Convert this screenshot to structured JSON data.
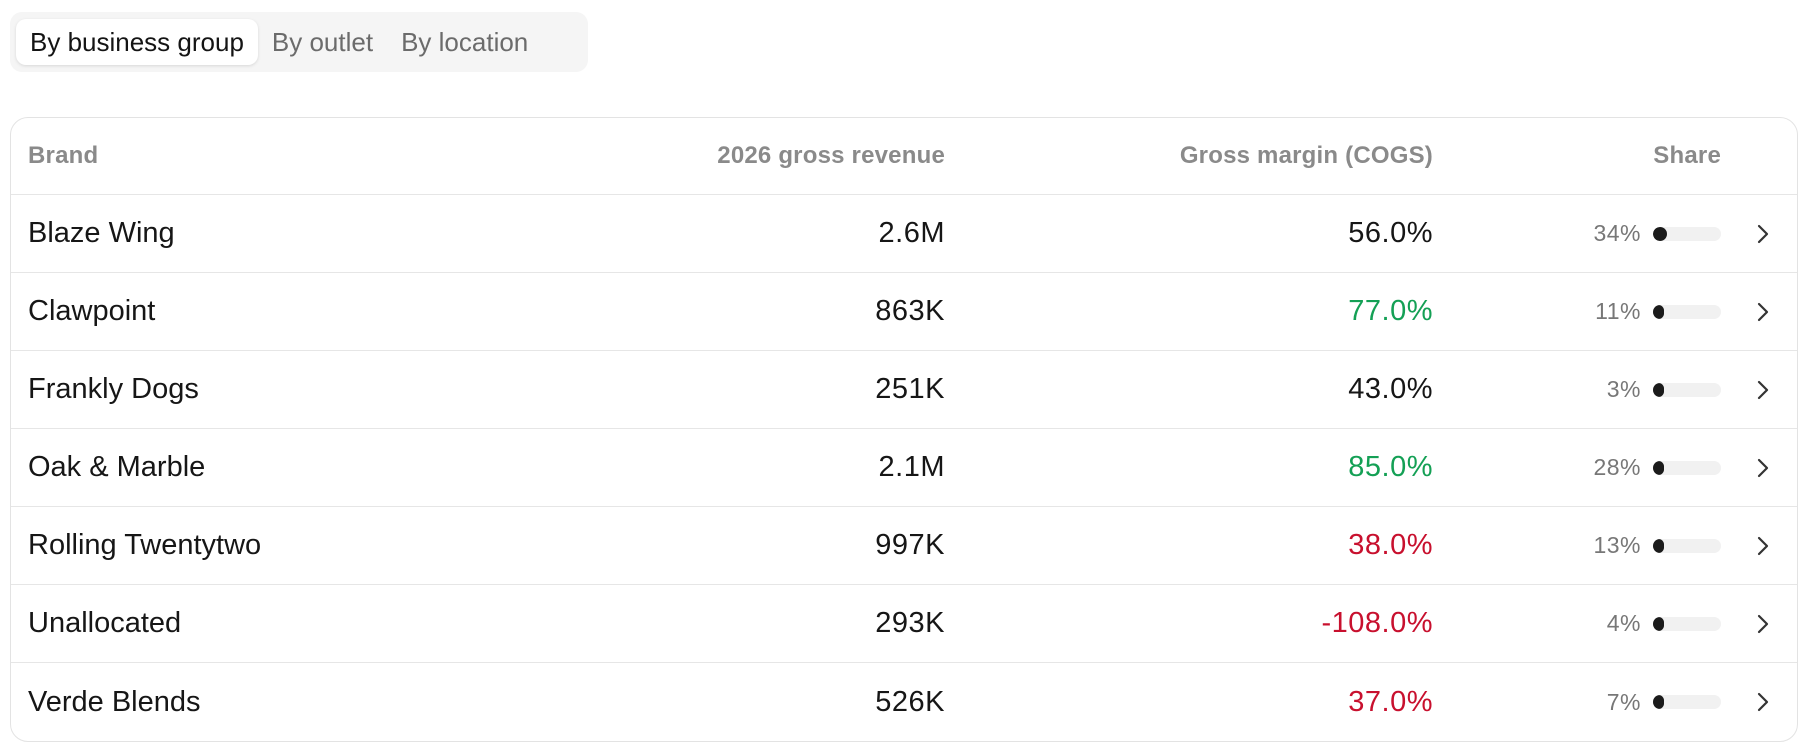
{
  "tabs": [
    {
      "label": "By business group",
      "active": true
    },
    {
      "label": "By outlet",
      "active": false
    },
    {
      "label": "By location",
      "active": false
    }
  ],
  "table": {
    "headers": {
      "brand": "Brand",
      "revenue": "2026 gross revenue",
      "margin": "Gross margin (COGS)",
      "share": "Share"
    },
    "rows": [
      {
        "brand": "Blaze Wing",
        "revenue": "2.6M",
        "margin": "56.0%",
        "margin_status": "neutral",
        "share": "34%",
        "share_value": 0.34
      },
      {
        "brand": "Clawpoint",
        "revenue": "863K",
        "margin": "77.0%",
        "margin_status": "positive",
        "share": "11%",
        "share_value": 0.11
      },
      {
        "brand": "Frankly Dogs",
        "revenue": "251K",
        "margin": "43.0%",
        "margin_status": "neutral",
        "share": "3%",
        "share_value": 0.03
      },
      {
        "brand": "Oak & Marble",
        "revenue": "2.1M",
        "margin": "85.0%",
        "margin_status": "positive",
        "share": "28%",
        "share_value": 0.28
      },
      {
        "brand": "Rolling Twentytwo",
        "revenue": "997K",
        "margin": "38.0%",
        "margin_status": "negative",
        "share": "13%",
        "share_value": 0.13
      },
      {
        "brand": "Unallocated",
        "revenue": "293K",
        "margin": "-108.0%",
        "margin_status": "negative",
        "share": "4%",
        "share_value": 0.04
      },
      {
        "brand": "Verde Blends",
        "revenue": "526K",
        "margin": "37.0%",
        "margin_status": "negative",
        "share": "7%",
        "share_value": 0.07
      }
    ]
  },
  "colors": {
    "positive": "#14a055",
    "negative": "#c8102e",
    "neutral": "#161616",
    "bar_fill": "#1b1b1b"
  },
  "icons": {
    "row_action": "chevron-right-icon"
  }
}
